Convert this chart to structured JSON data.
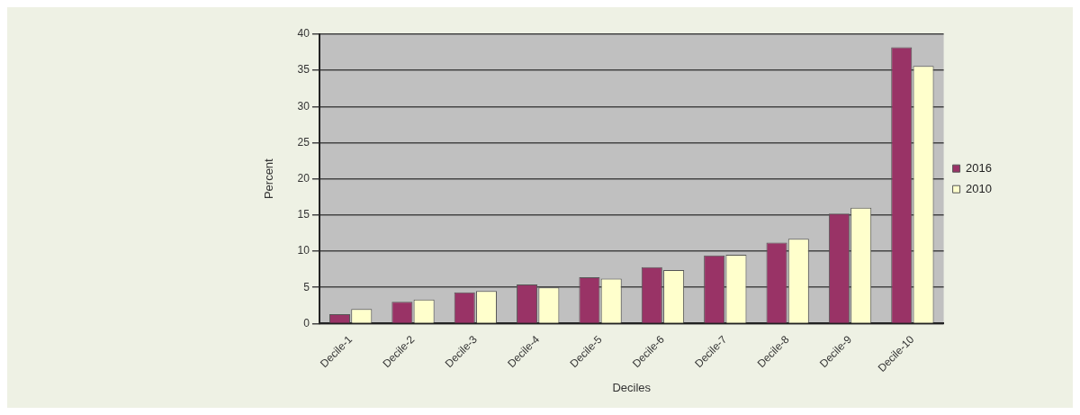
{
  "chart_data": {
    "type": "bar",
    "xlabel": "Deciles",
    "ylabel": "Percent",
    "categories": [
      "Decile-1",
      "Decile-2",
      "Decile-3",
      "Decile-4",
      "Decile-5",
      "Decile-6",
      "Decile-7",
      "Decile-8",
      "Decile-9",
      "Decile-10"
    ],
    "series": [
      {
        "name": "2016",
        "color": "#993366",
        "values": [
          1.3,
          3.0,
          4.3,
          5.4,
          6.4,
          7.8,
          9.4,
          11.2,
          15.2,
          38.2
        ]
      },
      {
        "name": "2010",
        "color": "#ffffcc",
        "values": [
          2.0,
          3.3,
          4.5,
          5.0,
          6.2,
          7.4,
          9.5,
          11.7,
          16.0,
          35.6
        ]
      }
    ],
    "ylim": [
      0,
      40
    ],
    "yticks": [
      0,
      5,
      10,
      15,
      20,
      25,
      30,
      35,
      40
    ],
    "grid": "y",
    "legend": "right"
  }
}
